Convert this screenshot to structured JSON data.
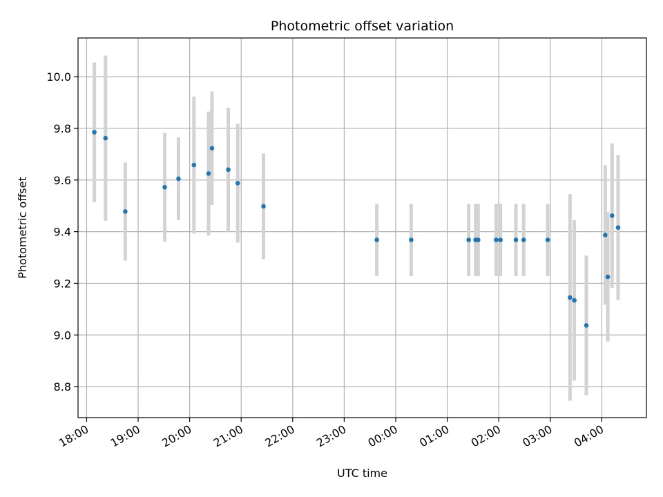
{
  "chart_data": {
    "type": "scatter",
    "title": "Photometric offset variation",
    "xlabel": "UTC time",
    "ylabel": "Photometric offset",
    "grid": true,
    "legend": "none",
    "x_ticks": [
      "18:00",
      "19:00",
      "20:00",
      "21:00",
      "22:00",
      "23:00",
      "00:00",
      "01:00",
      "02:00",
      "03:00",
      "04:00"
    ],
    "y_ticks": [
      "8.8",
      "9.0",
      "9.2",
      "9.4",
      "9.6",
      "9.8",
      "10.0"
    ],
    "xlim": [
      "17:50",
      "04:52"
    ],
    "ylim": [
      8.68,
      10.15
    ],
    "colors": {
      "marker": "#1f77b4",
      "errorbar": "#d3d3d3",
      "grid": "#b0b0b0"
    },
    "series": [
      {
        "points": [
          {
            "x": "18:09",
            "y": 9.785,
            "err": 0.27
          },
          {
            "x": "18:22",
            "y": 9.762,
            "err": 0.32
          },
          {
            "x": "18:45",
            "y": 9.478,
            "err": 0.19
          },
          {
            "x": "19:31",
            "y": 9.572,
            "err": 0.21
          },
          {
            "x": "19:47",
            "y": 9.605,
            "err": 0.16
          },
          {
            "x": "20:05",
            "y": 9.658,
            "err": 0.265
          },
          {
            "x": "20:22",
            "y": 9.625,
            "err": 0.24
          },
          {
            "x": "20:26",
            "y": 9.723,
            "err": 0.22
          },
          {
            "x": "20:45",
            "y": 9.64,
            "err": 0.24
          },
          {
            "x": "20:56",
            "y": 9.588,
            "err": 0.23
          },
          {
            "x": "21:26",
            "y": 9.498,
            "err": 0.205
          },
          {
            "x": "23:38",
            "y": 9.368,
            "err": 0.14
          },
          {
            "x": "00:18",
            "y": 9.368,
            "err": 0.14
          },
          {
            "x": "01:25",
            "y": 9.368,
            "err": 0.14
          },
          {
            "x": "01:33",
            "y": 9.368,
            "err": 0.14
          },
          {
            "x": "01:36",
            "y": 9.368,
            "err": 0.14
          },
          {
            "x": "01:57",
            "y": 9.368,
            "err": 0.14
          },
          {
            "x": "02:02",
            "y": 9.368,
            "err": 0.14
          },
          {
            "x": "02:20",
            "y": 9.368,
            "err": 0.14
          },
          {
            "x": "02:29",
            "y": 9.368,
            "err": 0.14
          },
          {
            "x": "02:57",
            "y": 9.368,
            "err": 0.14
          },
          {
            "x": "03:23",
            "y": 9.145,
            "err": 0.4
          },
          {
            "x": "03:28",
            "y": 9.134,
            "err": 0.31
          },
          {
            "x": "03:42",
            "y": 9.037,
            "err": 0.27
          },
          {
            "x": "04:04",
            "y": 9.387,
            "err": 0.27
          },
          {
            "x": "04:07",
            "y": 9.225,
            "err": 0.25
          },
          {
            "x": "04:12",
            "y": 9.462,
            "err": 0.28
          },
          {
            "x": "04:19",
            "y": 9.416,
            "err": 0.28
          }
        ]
      }
    ]
  }
}
